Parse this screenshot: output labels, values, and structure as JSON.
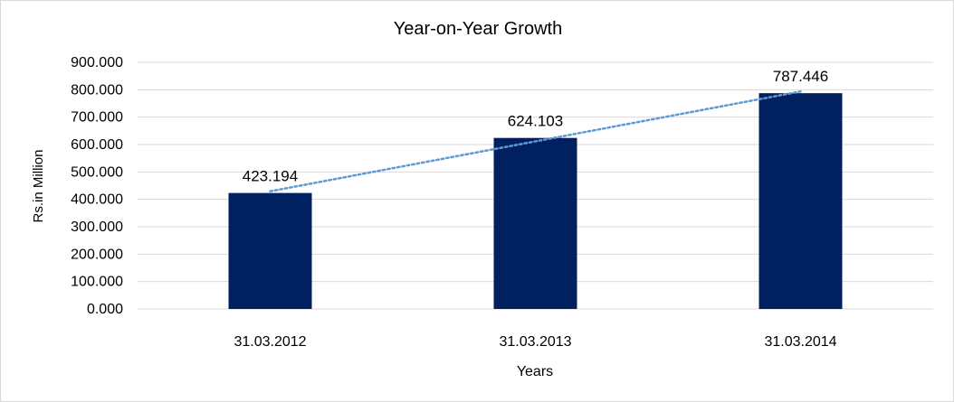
{
  "chart_data": {
    "type": "bar",
    "title": "Year-on-Year Growth",
    "xlabel": "Years",
    "ylabel": "Rs.in Million",
    "categories": [
      "31.03.2012",
      "31.03.2013",
      "31.03.2014"
    ],
    "values": [
      423.194,
      624.103,
      787.446
    ],
    "data_labels": [
      "423.194",
      "624.103",
      "787.446"
    ],
    "ylim": [
      0,
      900
    ],
    "yticks": [
      0,
      100,
      200,
      300,
      400,
      500,
      600,
      700,
      800,
      900
    ],
    "ytick_labels": [
      "0.000",
      "100.000",
      "200.000",
      "300.000",
      "400.000",
      "500.000",
      "600.000",
      "700.000",
      "800.000",
      "900.000"
    ],
    "grid": true,
    "trendline": "linear",
    "colors": {
      "bar": "#002060",
      "trendline": "#5B9BD5",
      "grid": "#d9d9d9"
    }
  }
}
